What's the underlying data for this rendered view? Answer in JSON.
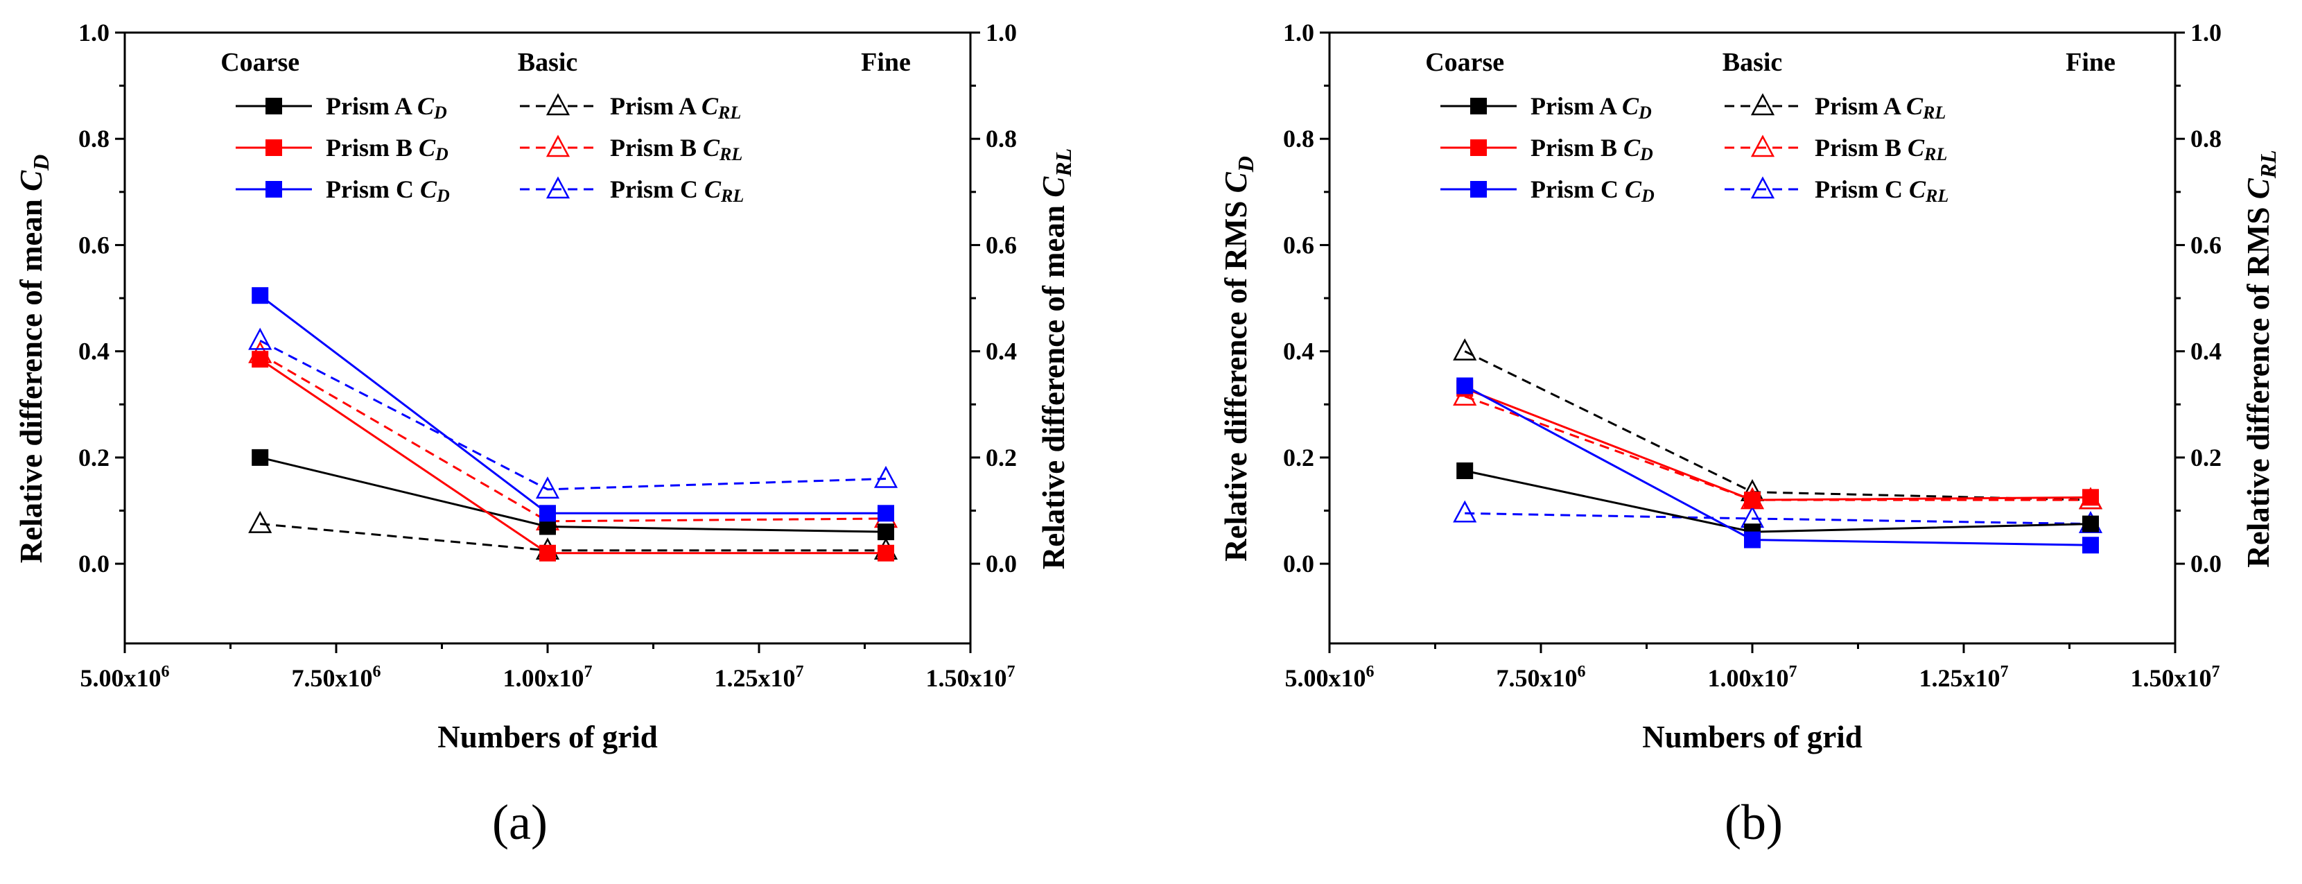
{
  "chart_data": [
    {
      "panel": "(a)",
      "type": "line",
      "xlabel": "Numbers of grid",
      "ylabel_left": "Relative difference of mean C",
      "ylabel_left_sub": "D",
      "ylabel_right": "Relative difference of mean C",
      "ylabel_right_sub": "RL",
      "xlim": [
        5000000,
        15000000
      ],
      "ylim": [
        -0.15,
        1.0
      ],
      "xticks": [
        5000000,
        7500000,
        10000000,
        12500000,
        15000000
      ],
      "xtick_labels": [
        "5.00x10",
        "7.50x10",
        "1.00x10",
        "1.25x10",
        "1.50x10"
      ],
      "xtick_exps": [
        "6",
        "6",
        "7",
        "7",
        "7"
      ],
      "yticks": [
        0.0,
        0.2,
        0.4,
        0.6,
        0.8,
        1.0
      ],
      "ytick_labels": [
        "0.0",
        "0.2",
        "0.4",
        "0.6",
        "0.8",
        "1.0"
      ],
      "levels": [
        {
          "label": "Coarse",
          "x": 6600000
        },
        {
          "label": "Basic",
          "x": 10000000
        },
        {
          "label": "Fine",
          "x": 14000000
        }
      ],
      "x": [
        6600000,
        10000000,
        14000000
      ],
      "series": [
        {
          "name": "Prism A",
          "sub": "D",
          "prefix": "C",
          "color": "#000000",
          "dashed": false,
          "marker": "square",
          "values": [
            0.2,
            0.07,
            0.06
          ]
        },
        {
          "name": "Prism B",
          "sub": "D",
          "prefix": "C",
          "color": "#ff0000",
          "dashed": false,
          "marker": "square",
          "values": [
            0.385,
            0.02,
            0.02
          ]
        },
        {
          "name": "Prism C",
          "sub": "D",
          "prefix": "C",
          "color": "#0000ff",
          "dashed": false,
          "marker": "square",
          "values": [
            0.505,
            0.095,
            0.095
          ]
        },
        {
          "name": "Prism A",
          "sub": "RL",
          "prefix": "C",
          "color": "#000000",
          "dashed": true,
          "marker": "triangle",
          "values": [
            0.075,
            0.025,
            0.025
          ]
        },
        {
          "name": "Prism B",
          "sub": "RL",
          "prefix": "C",
          "color": "#ff0000",
          "dashed": true,
          "marker": "triangle",
          "values": [
            0.395,
            0.08,
            0.085
          ]
        },
        {
          "name": "Prism C",
          "sub": "RL",
          "prefix": "C",
          "color": "#0000ff",
          "dashed": true,
          "marker": "triangle",
          "values": [
            0.42,
            0.14,
            0.16
          ]
        }
      ]
    },
    {
      "panel": "(b)",
      "type": "line",
      "xlabel": "Numbers of grid",
      "ylabel_left": "Relative difference of RMS C",
      "ylabel_left_sub": "D",
      "ylabel_right": "Relative difference of RMS C",
      "ylabel_right_sub": "RL",
      "xlim": [
        5000000,
        15000000
      ],
      "ylim": [
        -0.15,
        1.0
      ],
      "xticks": [
        5000000,
        7500000,
        10000000,
        12500000,
        15000000
      ],
      "xtick_labels": [
        "5.00x10",
        "7.50x10",
        "1.00x10",
        "1.25x10",
        "1.50x10"
      ],
      "xtick_exps": [
        "6",
        "6",
        "7",
        "7",
        "7"
      ],
      "yticks": [
        0.0,
        0.2,
        0.4,
        0.6,
        0.8,
        1.0
      ],
      "ytick_labels": [
        "0.0",
        "0.2",
        "0.4",
        "0.6",
        "0.8",
        "1.0"
      ],
      "levels": [
        {
          "label": "Coarse",
          "x": 6600000
        },
        {
          "label": "Basic",
          "x": 10000000
        },
        {
          "label": "Fine",
          "x": 14000000
        }
      ],
      "x": [
        6600000,
        10000000,
        14000000
      ],
      "series": [
        {
          "name": "Prism A",
          "sub": "D",
          "prefix": "C",
          "color": "#000000",
          "dashed": false,
          "marker": "square",
          "values": [
            0.175,
            0.06,
            0.075
          ]
        },
        {
          "name": "Prism B",
          "sub": "D",
          "prefix": "C",
          "color": "#ff0000",
          "dashed": false,
          "marker": "square",
          "values": [
            0.33,
            0.12,
            0.125
          ]
        },
        {
          "name": "Prism C",
          "sub": "D",
          "prefix": "C",
          "color": "#0000ff",
          "dashed": false,
          "marker": "square",
          "values": [
            0.335,
            0.045,
            0.035
          ]
        },
        {
          "name": "Prism A",
          "sub": "RL",
          "prefix": "C",
          "color": "#000000",
          "dashed": true,
          "marker": "triangle",
          "values": [
            0.4,
            0.135,
            0.12
          ]
        },
        {
          "name": "Prism B",
          "sub": "RL",
          "prefix": "C",
          "color": "#ff0000",
          "dashed": true,
          "marker": "triangle",
          "values": [
            0.315,
            0.12,
            0.12
          ]
        },
        {
          "name": "Prism C",
          "sub": "RL",
          "prefix": "C",
          "color": "#0000ff",
          "dashed": true,
          "marker": "triangle",
          "values": [
            0.095,
            0.085,
            0.075
          ]
        }
      ]
    }
  ]
}
